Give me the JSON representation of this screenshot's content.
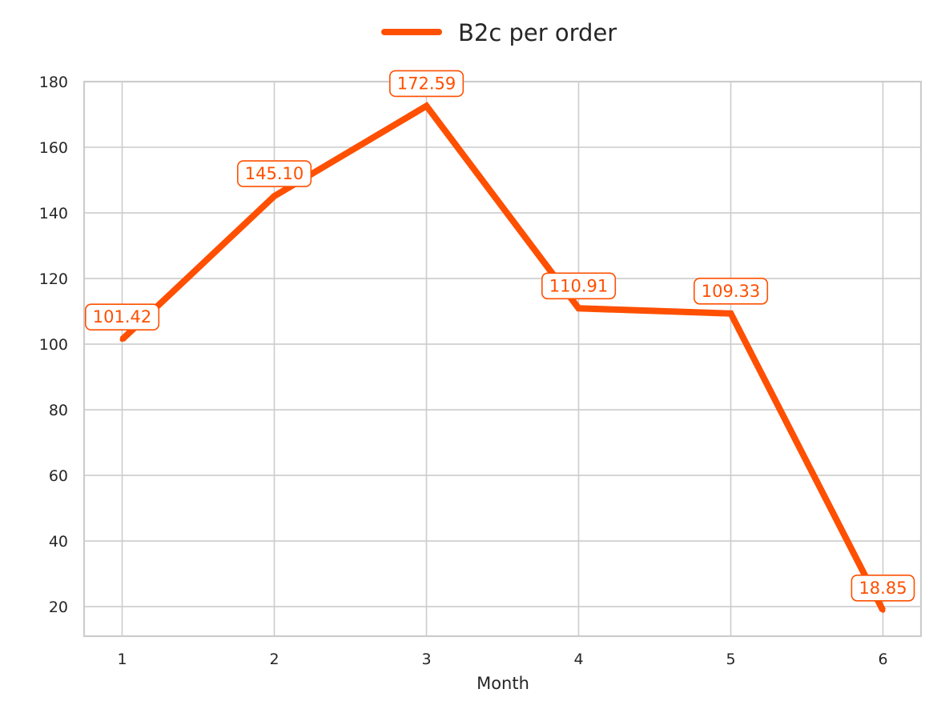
{
  "chart_data": {
    "type": "line",
    "x": [
      1,
      2,
      3,
      4,
      5,
      6
    ],
    "series": [
      {
        "name": "B2c per order",
        "values": [
          101.42,
          145.1,
          172.59,
          110.91,
          109.33,
          18.85
        ],
        "data_labels": [
          "101.42",
          "145.10",
          "172.59",
          "110.91",
          "109.33",
          "18.85"
        ],
        "color": "#ff4f00"
      }
    ],
    "xlabel": "Month",
    "ylabel": "",
    "xticks": [
      "1",
      "2",
      "3",
      "4",
      "5",
      "6"
    ],
    "yticks": [
      "20",
      "40",
      "60",
      "80",
      "100",
      "120",
      "140",
      "160",
      "180"
    ],
    "xlim": [
      0.75,
      6.25
    ],
    "ylim": [
      11,
      180
    ],
    "grid": true,
    "legend_position": "top-center"
  },
  "colors": {
    "grid": "#cccccc",
    "axis": "#cccccc",
    "text": "#262626",
    "line": "#ff4f00"
  }
}
